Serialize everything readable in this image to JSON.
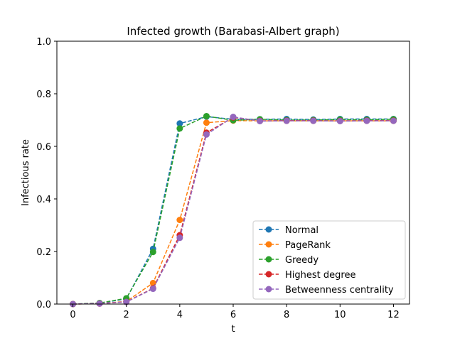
{
  "chart_data": {
    "type": "line",
    "title": "Infected growth (Barabasi-Albert graph)",
    "xlabel": "t",
    "ylabel": "Infectious rate",
    "xlim": [
      -0.6,
      12.6
    ],
    "ylim": [
      0,
      1.0
    ],
    "xticks": [
      0,
      2,
      4,
      6,
      8,
      10,
      12
    ],
    "yticks": [
      0.0,
      0.2,
      0.4,
      0.6,
      0.8,
      1.0
    ],
    "x": [
      0,
      1,
      2,
      3,
      4,
      5,
      6,
      7,
      8,
      9,
      10,
      11,
      12
    ],
    "grid": false,
    "legend_position": "lower-right",
    "series": [
      {
        "name": "Normal",
        "color": "#1f77b4",
        "values": [
          0.0,
          0.003,
          0.02,
          0.21,
          0.687,
          0.713,
          0.703,
          0.703,
          0.704,
          0.702,
          0.704,
          0.704,
          0.704
        ]
      },
      {
        "name": "PageRank",
        "color": "#ff7f0e",
        "values": [
          0.0,
          0.002,
          0.01,
          0.08,
          0.32,
          0.69,
          0.698,
          0.697,
          0.697,
          0.697,
          0.697,
          0.697,
          0.697
        ]
      },
      {
        "name": "Greedy",
        "color": "#2ca02c",
        "values": [
          0.0,
          0.004,
          0.022,
          0.198,
          0.668,
          0.715,
          0.699,
          0.703,
          0.7,
          0.7,
          0.702,
          0.701,
          0.703
        ]
      },
      {
        "name": "Highest degree",
        "color": "#d62728",
        "values": [
          0.0,
          0.002,
          0.008,
          0.06,
          0.262,
          0.652,
          0.71,
          0.697,
          0.698,
          0.698,
          0.697,
          0.698,
          0.698
        ]
      },
      {
        "name": "Betweenness centrality",
        "color": "#9467bd",
        "values": [
          0.0,
          0.002,
          0.008,
          0.058,
          0.252,
          0.645,
          0.712,
          0.696,
          0.697,
          0.697,
          0.696,
          0.697,
          0.697
        ]
      }
    ]
  }
}
